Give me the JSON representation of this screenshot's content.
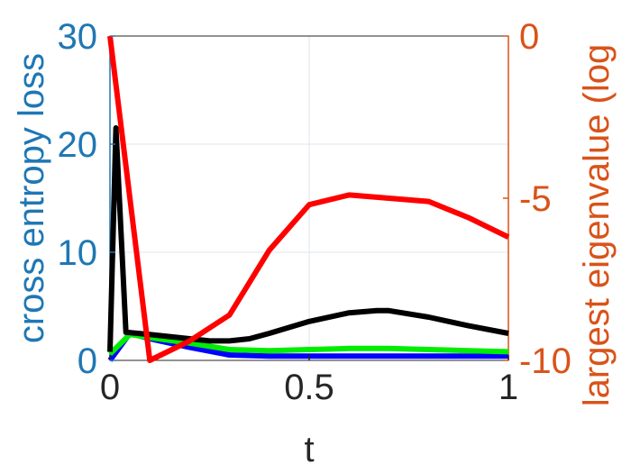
{
  "chart_data": {
    "type": "line",
    "title": "",
    "xlabel": "t",
    "ylabel_left": "cross entropy loss",
    "ylabel_right": "largest eigenvalue (log",
    "xlim": [
      0,
      1
    ],
    "ylim_left": [
      0,
      30
    ],
    "ylim_right": [
      -10,
      0
    ],
    "xticks": [
      "0",
      "0.5",
      "1"
    ],
    "yticks_left": [
      "0",
      "10",
      "20",
      "30"
    ],
    "yticks_right": [
      "-10",
      "-5",
      "0"
    ],
    "grid": true,
    "colors": {
      "left_axis": "#1f77b4",
      "right_axis": "#d95319",
      "grid": "#dfe6ec"
    },
    "series": [
      {
        "axis": "left",
        "color": "#0000ff",
        "x": [
          0,
          0.05,
          0.1,
          0.2,
          0.3,
          0.4,
          0.5,
          0.6,
          0.7,
          0.8,
          0.9,
          1.0
        ],
        "y": [
          0,
          2.5,
          2.0,
          1.2,
          0.5,
          0.4,
          0.4,
          0.4,
          0.4,
          0.4,
          0.4,
          0.4
        ]
      },
      {
        "axis": "left",
        "color": "#00ee00",
        "x": [
          0,
          0.05,
          0.1,
          0.2,
          0.3,
          0.4,
          0.5,
          0.6,
          0.7,
          0.8,
          0.9,
          1.0
        ],
        "y": [
          0.6,
          2.4,
          2.1,
          1.6,
          1.0,
          0.9,
          1.0,
          1.1,
          1.1,
          1.0,
          0.9,
          0.8
        ]
      },
      {
        "axis": "left",
        "color": "#000000",
        "x": [
          0,
          0.015,
          0.04,
          0.1,
          0.2,
          0.25,
          0.3,
          0.35,
          0.4,
          0.5,
          0.6,
          0.67,
          0.7,
          0.8,
          0.9,
          1.0
        ],
        "y": [
          0.8,
          21.5,
          2.6,
          2.4,
          2.0,
          1.8,
          1.8,
          2.0,
          2.5,
          3.6,
          4.4,
          4.6,
          4.6,
          4.0,
          3.2,
          2.5
        ]
      },
      {
        "axis": "right",
        "color": "#ff0000",
        "x": [
          0,
          0.1,
          0.2,
          0.3,
          0.4,
          0.5,
          0.6,
          0.7,
          0.8,
          0.9,
          1.0
        ],
        "y": [
          0,
          -10,
          -9.4,
          -8.6,
          -6.6,
          -5.2,
          -4.9,
          -5.0,
          -5.1,
          -5.6,
          -6.2
        ]
      }
    ]
  }
}
